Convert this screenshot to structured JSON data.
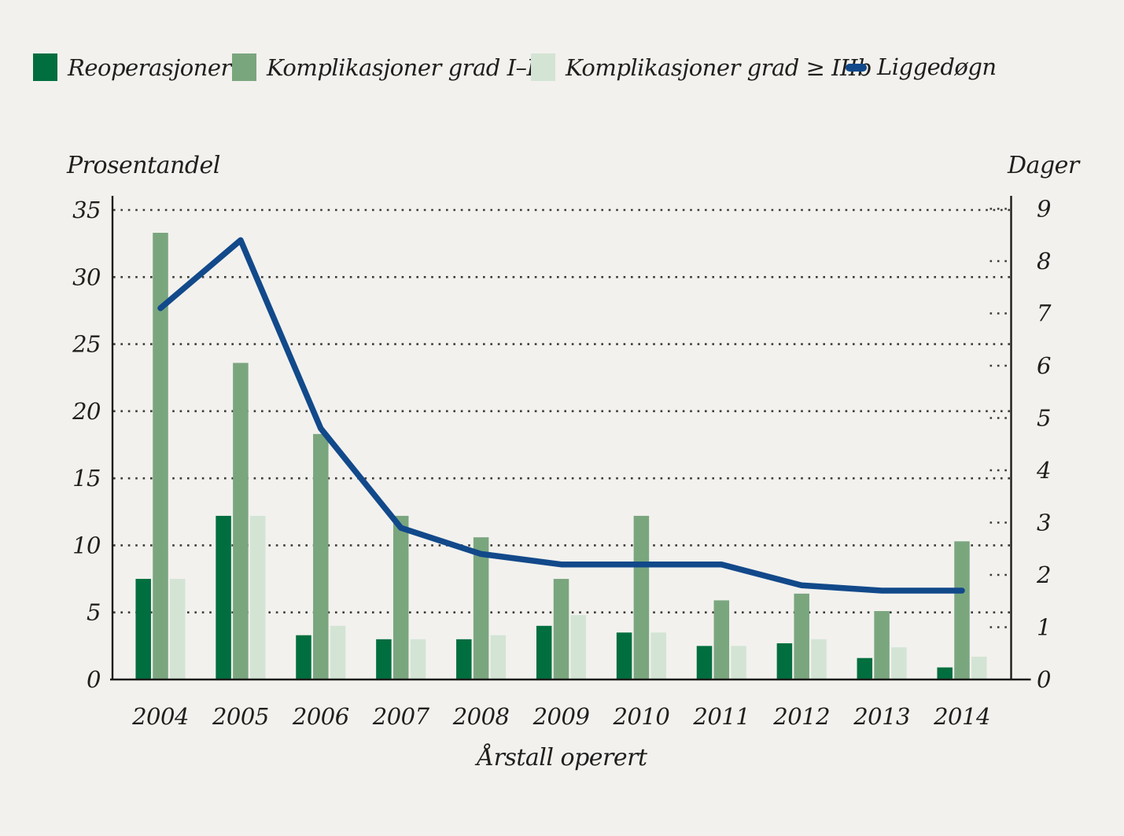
{
  "colors": {
    "background": "#f2f1ee",
    "dark_green": "#006e3e",
    "medium_green": "#7aa67e",
    "light_green": "#d3e4d4",
    "blue": "#12498a",
    "text": "#1f1f1d",
    "grid": "#3b3b37",
    "axis": "#1c1c1a"
  },
  "chart_data": {
    "type": "bar+line",
    "categories": [
      "2004",
      "2005",
      "2006",
      "2007",
      "2008",
      "2009",
      "2010",
      "2011",
      "2012",
      "2013",
      "2014"
    ],
    "bar_series": [
      {
        "name": "Reoperasjoner",
        "color_key": "dark_green",
        "values": [
          7.5,
          12.2,
          3.3,
          3.0,
          3.0,
          4.0,
          3.5,
          2.5,
          2.7,
          1.6,
          0.9
        ]
      },
      {
        "name": "Komplikasjoner grad I–IV",
        "color_key": "medium_green",
        "values": [
          33.3,
          23.6,
          18.3,
          12.2,
          10.6,
          7.5,
          12.2,
          5.9,
          6.4,
          5.1,
          10.3
        ]
      },
      {
        "name": "Komplikasjoner grad ≥ IIIb",
        "color_key": "light_green",
        "values": [
          7.5,
          12.2,
          4.0,
          3.0,
          3.3,
          4.8,
          3.5,
          2.5,
          3.0,
          2.4,
          1.7
        ]
      }
    ],
    "line_series": {
      "name": "Liggedøgn",
      "color_key": "blue",
      "axis": "right",
      "values": [
        7.1,
        8.4,
        4.8,
        2.9,
        2.4,
        2.2,
        2.2,
        2.2,
        1.8,
        1.7,
        1.7
      ]
    },
    "left_axis": {
      "title": "Prosentandel",
      "min": 0,
      "max": 35,
      "tick_step": 5,
      "ticks": [
        0,
        5,
        10,
        15,
        20,
        25,
        30,
        35
      ]
    },
    "right_axis": {
      "title": "Dager",
      "min": 0,
      "max": 9,
      "tick_step": 1,
      "ticks": [
        0,
        1,
        2,
        3,
        4,
        5,
        6,
        7,
        8,
        9
      ]
    },
    "x_axis": {
      "title": "Årstall operert"
    },
    "grid": "dotted horizontal lines at left-axis multiples of 5",
    "legend_position": "top"
  }
}
